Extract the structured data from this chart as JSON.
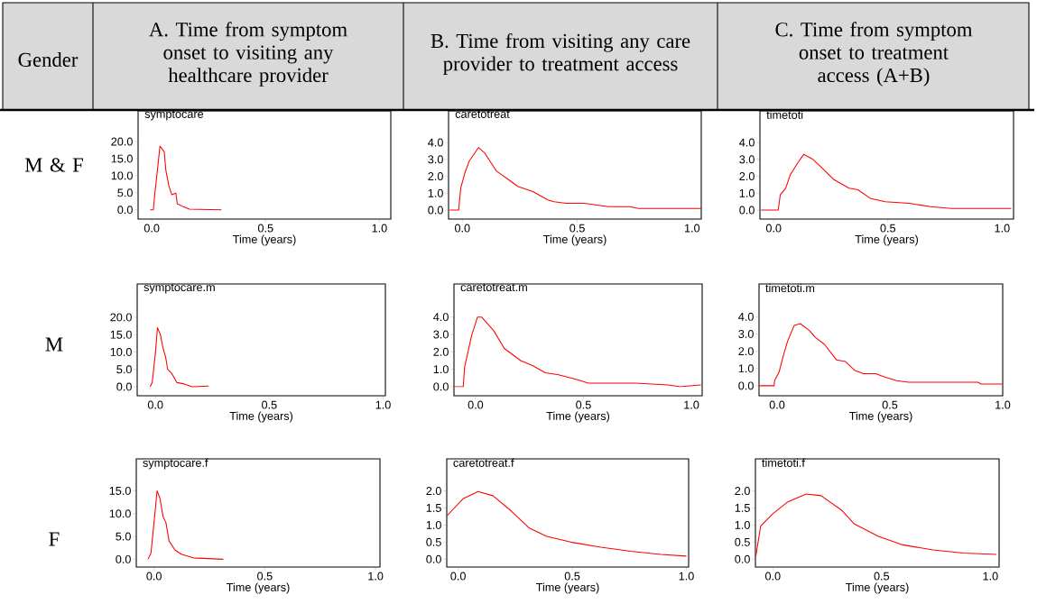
{
  "chart_data": [
    {
      "type": "other",
      "annotations": [
        "Gender",
        "A. Time from symptom onset to visiting any healthcare provider",
        "B. Time from visiting any care provider to treatment access",
        "C. Time from symptom onset to treatment access (A+B)",
        "M & F",
        "M",
        "F"
      ]
    },
    {
      "type": "line",
      "title": "symptocare",
      "xlabel": "Time (years)",
      "color": "#ff0000",
      "xlim": [
        -0.06,
        1.05
      ],
      "ylim": [
        -2.7,
        29
      ],
      "xticks": [
        {
          "value": 0,
          "label": "0.0"
        },
        {
          "value": 0.5,
          "label": "0.5"
        },
        {
          "value": 1,
          "label": "1.0"
        }
      ],
      "yticks": [
        {
          "value": 0,
          "label": "0.0"
        },
        {
          "value": 5,
          "label": "5.0"
        },
        {
          "value": 10,
          "label": "10.0"
        },
        {
          "value": 15,
          "label": "15.0"
        },
        {
          "value": 20,
          "label": "20.0"
        }
      ],
      "x": [
        -0.007,
        0.007,
        0.013,
        0.022,
        0.036,
        0.046,
        0.055,
        0.062,
        0.075,
        0.088,
        0.106,
        0.112,
        0.139,
        0.165,
        0.306
      ],
      "values": [
        0,
        0,
        4.4,
        9.8,
        18.7,
        17.8,
        16.9,
        11.6,
        7.1,
        4.4,
        4.9,
        1.8,
        0.9,
        0.2,
        0
      ]
    },
    {
      "type": "line",
      "title": "caretotreat",
      "xlabel": "Time (years)",
      "color": "#ff0000",
      "xlim": [
        -0.06,
        1.04
      ],
      "ylim": [
        -0.53,
        5.87
      ],
      "xticks": [
        {
          "value": 0,
          "label": "0.0"
        },
        {
          "value": 0.5,
          "label": "0.5"
        },
        {
          "value": 1,
          "label": "1.0"
        }
      ],
      "yticks": [
        {
          "value": 0,
          "label": "0.0"
        },
        {
          "value": 1,
          "label": "1.0"
        },
        {
          "value": 2,
          "label": "2.0"
        },
        {
          "value": 3,
          "label": "3.0"
        },
        {
          "value": 4,
          "label": "4.0"
        }
      ],
      "x": [
        -0.055,
        -0.016,
        -0.007,
        0.011,
        0.03,
        0.07,
        0.096,
        0.149,
        0.201,
        0.241,
        0.307,
        0.372,
        0.399,
        0.451,
        0.53,
        0.636,
        0.728,
        0.767,
        1.04
      ],
      "values": [
        0,
        0,
        1.3,
        2.2,
        2.9,
        3.7,
        3.4,
        2.3,
        1.8,
        1.4,
        1.1,
        0.6,
        0.5,
        0.4,
        0.4,
        0.2,
        0.2,
        0.1,
        0.1
      ]
    },
    {
      "type": "line",
      "title": "timetoti",
      "xlabel": "Time (years)",
      "color": "#ff0000",
      "xlim": [
        -0.06,
        1.05
      ],
      "ylim": [
        -0.53,
        5.87
      ],
      "xticks": [
        {
          "value": 0,
          "label": "0.0"
        },
        {
          "value": 0.5,
          "label": "0.5"
        },
        {
          "value": 1,
          "label": "1.0"
        }
      ],
      "yticks": [
        {
          "value": 0,
          "label": "0.0"
        },
        {
          "value": 1,
          "label": "1.0"
        },
        {
          "value": 2,
          "label": "2.0"
        },
        {
          "value": 3,
          "label": "3.0"
        },
        {
          "value": 4,
          "label": "4.0"
        }
      ],
      "x": [
        -0.055,
        0.02,
        0.029,
        0.053,
        0.073,
        0.106,
        0.132,
        0.172,
        0.211,
        0.264,
        0.33,
        0.369,
        0.422,
        0.488,
        0.594,
        0.686,
        0.778,
        0.91,
        1.04
      ],
      "values": [
        0,
        0,
        0.9,
        1.3,
        2.1,
        2.8,
        3.3,
        3.0,
        2.5,
        1.8,
        1.3,
        1.2,
        0.7,
        0.5,
        0.4,
        0.2,
        0.1,
        0.1,
        0.1
      ]
    },
    {
      "type": "line",
      "title": "symptocare.m",
      "xlabel": "Time (years)",
      "color": "#ff0000",
      "xlim": [
        -0.08,
        1.01
      ],
      "ylim": [
        -2.6,
        29.6
      ],
      "xticks": [
        {
          "value": 0,
          "label": "0.0"
        },
        {
          "value": 0.5,
          "label": "0.5"
        },
        {
          "value": 1,
          "label": "1.0"
        }
      ],
      "yticks": [
        {
          "value": 0,
          "label": "0.0"
        },
        {
          "value": 5,
          "label": "5.0"
        },
        {
          "value": 10,
          "label": "10.0"
        },
        {
          "value": 15,
          "label": "15.0"
        },
        {
          "value": 20,
          "label": "20.0"
        }
      ],
      "x": [
        -0.023,
        -0.014,
        0,
        0.009,
        0.022,
        0.032,
        0.045,
        0.054,
        0.072,
        0.094,
        0.126,
        0.162,
        0.234
      ],
      "values": [
        0,
        1.2,
        9.7,
        17.0,
        15.0,
        11.5,
        8.5,
        5.0,
        3.8,
        1.2,
        0.8,
        0,
        0.2
      ]
    },
    {
      "type": "line",
      "title": "caretotreat.m",
      "xlabel": "Time (years)",
      "color": "#ff0000",
      "xlim": [
        -0.1,
        1.05
      ],
      "ylim": [
        -0.52,
        5.9
      ],
      "xticks": [
        {
          "value": 0,
          "label": "0.0"
        },
        {
          "value": 0.5,
          "label": "0.5"
        },
        {
          "value": 1,
          "label": "1.0"
        }
      ],
      "yticks": [
        {
          "value": 0,
          "label": "0.0"
        },
        {
          "value": 1,
          "label": "1.0"
        },
        {
          "value": 2,
          "label": "2.0"
        },
        {
          "value": 3,
          "label": "3.0"
        },
        {
          "value": 4,
          "label": "4.0"
        }
      ],
      "x": [
        -0.098,
        -0.057,
        -0.051,
        -0.019,
        0.009,
        0.028,
        0.085,
        0.133,
        0.209,
        0.266,
        0.323,
        0.38,
        0.474,
        0.522,
        0.683,
        0.74,
        0.892,
        0.949,
        1.044
      ],
      "values": [
        0,
        0,
        1.1,
        2.9,
        4.0,
        4.0,
        3.2,
        2.2,
        1.5,
        1.2,
        0.8,
        0.7,
        0.4,
        0.2,
        0.2,
        0.2,
        0.1,
        0,
        0.1
      ]
    },
    {
      "type": "line",
      "title": "timetoti.m",
      "xlabel": "Time (years)",
      "color": "#ff0000",
      "xlim": [
        -0.08,
        1.0
      ],
      "ylim": [
        -0.58,
        5.9
      ],
      "xticks": [
        {
          "value": 0,
          "label": "0.0"
        },
        {
          "value": 0.5,
          "label": "0.5"
        },
        {
          "value": 1,
          "label": "1.0"
        }
      ],
      "yticks": [
        {
          "value": 0,
          "label": "0.0"
        },
        {
          "value": 1,
          "label": "1.0"
        },
        {
          "value": 2,
          "label": "2.0"
        },
        {
          "value": 3,
          "label": "3.0"
        },
        {
          "value": 4,
          "label": "4.0"
        }
      ],
      "x": [
        -0.078,
        -0.013,
        -0.011,
        0.009,
        0.029,
        0.047,
        0.076,
        0.103,
        0.143,
        0.17,
        0.21,
        0.263,
        0.303,
        0.343,
        0.383,
        0.437,
        0.477,
        0.53,
        0.583,
        0.65,
        0.73,
        0.784,
        0.89,
        0.904,
        0.997
      ],
      "values": [
        0,
        0,
        0.3,
        0.8,
        1.8,
        2.6,
        3.5,
        3.6,
        3.2,
        2.8,
        2.4,
        1.5,
        1.4,
        0.9,
        0.7,
        0.7,
        0.5,
        0.3,
        0.2,
        0.2,
        0.2,
        0.2,
        0.2,
        0.1,
        0.1
      ]
    },
    {
      "type": "line",
      "title": "symptocare.f",
      "xlabel": "Time (years)",
      "color": "#ff0000",
      "xlim": [
        -0.08,
        1.02
      ],
      "ylim": [
        -1.7,
        22
      ],
      "xticks": [
        {
          "value": 0,
          "label": "0.0"
        },
        {
          "value": 0.5,
          "label": "0.5"
        },
        {
          "value": 1,
          "label": "1.0"
        }
      ],
      "yticks": [
        {
          "value": 0,
          "label": "0.0"
        },
        {
          "value": 5,
          "label": "5.0"
        },
        {
          "value": 10,
          "label": "10.0"
        },
        {
          "value": 15,
          "label": "15.0"
        }
      ],
      "x": [
        -0.027,
        -0.014,
        0,
        0.014,
        0.027,
        0.041,
        0.054,
        0.068,
        0.095,
        0.123,
        0.177,
        0.313
      ],
      "values": [
        0,
        1.3,
        8.0,
        15.0,
        13.3,
        9.3,
        8.0,
        4.0,
        2.0,
        1.1,
        0.3,
        0
      ]
    },
    {
      "type": "line",
      "title": "caretotreat.f",
      "xlabel": "Time (years)",
      "color": "#ff0000",
      "xlim": [
        -0.05,
        1.01
      ],
      "ylim": [
        -0.23,
        2.94
      ],
      "xticks": [
        {
          "value": 0,
          "label": "0.0"
        },
        {
          "value": 0.5,
          "label": "0.5"
        },
        {
          "value": 1,
          "label": "1.0"
        }
      ],
      "yticks": [
        {
          "value": 0,
          "label": "0.0"
        },
        {
          "value": 0.5,
          "label": "0.5"
        },
        {
          "value": 1,
          "label": "1.0"
        },
        {
          "value": 1.5,
          "label": "1.5"
        },
        {
          "value": 2,
          "label": "2.0"
        }
      ],
      "x": [
        -0.049,
        0.021,
        0.087,
        0.152,
        0.231,
        0.31,
        0.388,
        0.493,
        0.625,
        0.756,
        0.887,
        1.0
      ],
      "values": [
        1.27,
        1.77,
        1.98,
        1.86,
        1.42,
        0.92,
        0.67,
        0.5,
        0.35,
        0.23,
        0.14,
        0.09
      ]
    },
    {
      "type": "line",
      "title": "timetoti.f",
      "xlabel": "Time (years)",
      "color": "#ff0000",
      "xlim": [
        -0.08,
        1.04
      ],
      "ylim": [
        -0.23,
        2.94
      ],
      "xticks": [
        {
          "value": 0,
          "label": "0.0"
        },
        {
          "value": 0.5,
          "label": "0.5"
        },
        {
          "value": 1,
          "label": "1.0"
        }
      ],
      "yticks": [
        {
          "value": 0,
          "label": "0.0"
        },
        {
          "value": 0.5,
          "label": "0.5"
        },
        {
          "value": 1,
          "label": "1.0"
        },
        {
          "value": 1.5,
          "label": "1.5"
        },
        {
          "value": 2,
          "label": "2.0"
        }
      ],
      "x": [
        -0.078,
        -0.056,
        0,
        0.069,
        0.153,
        0.222,
        0.319,
        0.375,
        0.486,
        0.597,
        0.736,
        0.875,
        1.028
      ],
      "values": [
        0.09,
        0.97,
        1.33,
        1.68,
        1.91,
        1.86,
        1.42,
        1.03,
        0.67,
        0.42,
        0.27,
        0.18,
        0.14
      ]
    }
  ]
}
